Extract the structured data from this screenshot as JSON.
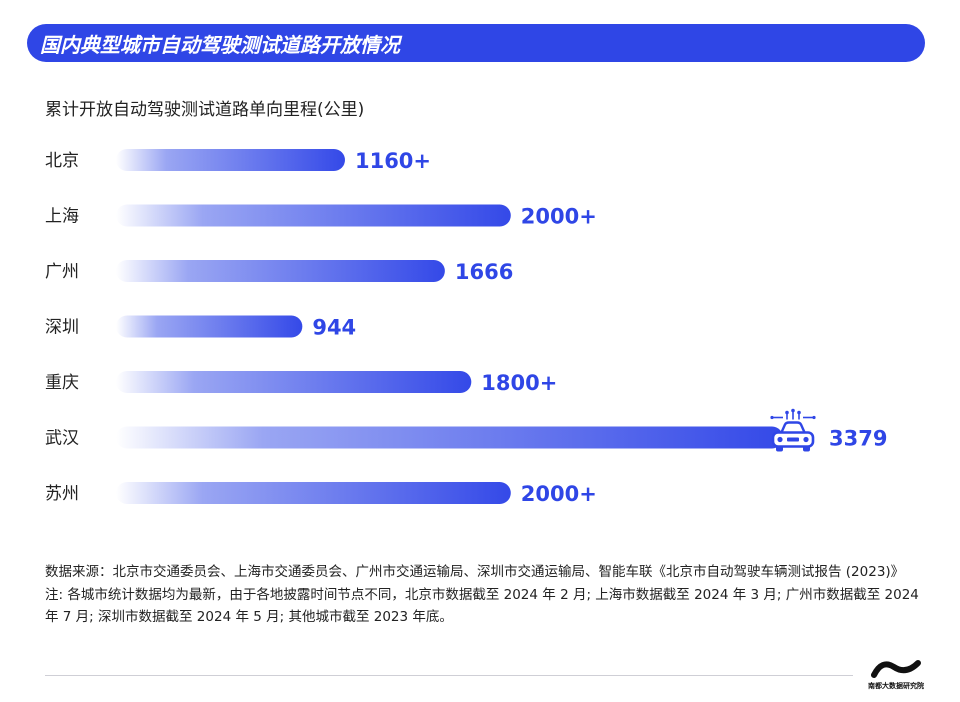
{
  "header": {
    "title": "国内典型城市自动驾驶测试道路开放情况"
  },
  "colors": {
    "accent": "#2f46e6",
    "bar_start": "#ffffff",
    "bar_end": "#3449e8",
    "label": "#2f46e6"
  },
  "chart_data": {
    "type": "bar",
    "orientation": "horizontal",
    "title": "累计开放自动驾驶测试道路单向里程(公里)",
    "categories": [
      "北京",
      "上海",
      "广州",
      "深圳",
      "重庆",
      "武汉",
      "苏州"
    ],
    "values": [
      1160,
      2000,
      1666,
      944,
      1800,
      3379,
      2000
    ],
    "labels": [
      "1160+",
      "2000+",
      "1666",
      "944",
      "1800+",
      "3379",
      "2000+"
    ],
    "xlim": [
      0,
      3379
    ],
    "grid": false,
    "annotations": [
      {
        "category": "武汉",
        "icon": "car-icon"
      }
    ]
  },
  "notes": {
    "source": "数据来源：北京市交通委员会、上海市交通委员会、广州市交通运输局、深圳市交通运输局、智能车联《北京市自动驾驶车辆测试报告 (2023)》",
    "note": "注: 各城市统计数据均为最新，由于各地披露时间节点不同，北京市数据截至 2024 年 2 月; 上海市数据截至 2024 年 3 月; 广州市数据截至 2024 年 7 月; 深圳市数据截至 2024 年 5 月; 其他城市截至 2023 年底。"
  },
  "logo": {
    "text": "南都大数据研究院"
  }
}
